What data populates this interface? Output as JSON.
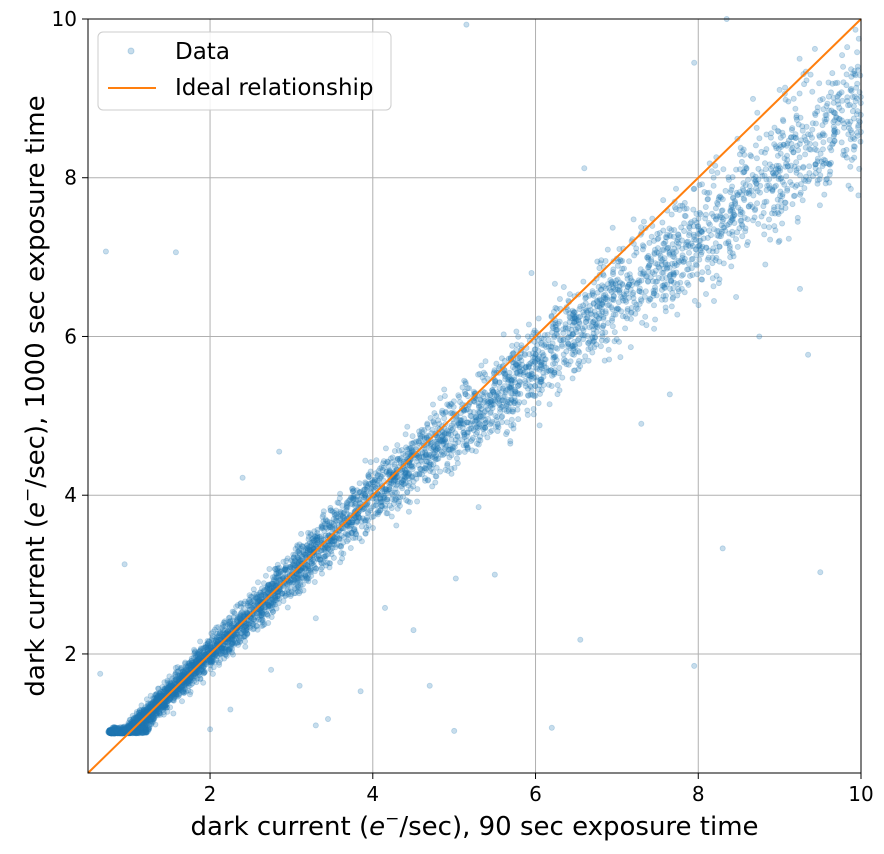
{
  "chart_data": {
    "type": "scatter",
    "title": "",
    "xlabel": "dark current (e⁻/sec), 90 sec exposure time",
    "ylabel": "dark current (e⁻/sec), 1000 sec exposure time",
    "xlabel_parts": {
      "pre": "dark current (",
      "var": "e",
      "sup": "−",
      "post": "/sec), 90 sec exposure time"
    },
    "ylabel_parts": {
      "pre": "dark current (",
      "var": "e",
      "sup": "−",
      "post": "/sec), 1000 sec exposure time"
    },
    "xlim": [
      0.5,
      10
    ],
    "ylim": [
      0.5,
      10
    ],
    "xticks": [
      2,
      4,
      6,
      8,
      10
    ],
    "yticks": [
      2,
      4,
      6,
      8,
      10
    ],
    "xtick_labels": [
      "2",
      "4",
      "6",
      "8",
      "10"
    ],
    "ytick_labels": [
      "2",
      "4",
      "6",
      "8",
      "10"
    ],
    "grid": true,
    "legend": {
      "position": "upper-left",
      "entries": [
        "Data",
        "Ideal relationship"
      ]
    },
    "series": [
      {
        "name": "Data",
        "kind": "scatter",
        "color": "#1f77b4",
        "alpha": 0.25,
        "approx_points": 6000,
        "trend": {
          "slope_low": 1.0,
          "slope_high": 0.82,
          "x_floor": 1.05,
          "y_floor": 1.0
        },
        "outliers": [
          {
            "x": 0.72,
            "y": 7.07
          },
          {
            "x": 1.58,
            "y": 7.06
          },
          {
            "x": 0.95,
            "y": 3.13
          },
          {
            "x": 5.15,
            "y": 9.93
          },
          {
            "x": 8.35,
            "y": 10.0
          },
          {
            "x": 9.5,
            "y": 3.03
          },
          {
            "x": 8.3,
            "y": 3.33
          },
          {
            "x": 7.95,
            "y": 1.85
          },
          {
            "x": 6.55,
            "y": 2.18
          },
          {
            "x": 5.5,
            "y": 3.0
          },
          {
            "x": 5.02,
            "y": 2.95
          },
          {
            "x": 4.7,
            "y": 1.6
          },
          {
            "x": 4.5,
            "y": 2.3
          },
          {
            "x": 5.0,
            "y": 1.03
          },
          {
            "x": 6.2,
            "y": 1.07
          },
          {
            "x": 3.45,
            "y": 1.18
          },
          {
            "x": 3.85,
            "y": 1.53
          },
          {
            "x": 4.15,
            "y": 2.58
          },
          {
            "x": 3.1,
            "y": 1.6
          },
          {
            "x": 2.85,
            "y": 4.55
          },
          {
            "x": 2.4,
            "y": 4.22
          },
          {
            "x": 6.05,
            "y": 4.88
          },
          {
            "x": 7.3,
            "y": 4.9
          },
          {
            "x": 7.65,
            "y": 5.27
          },
          {
            "x": 9.35,
            "y": 5.77
          },
          {
            "x": 6.6,
            "y": 8.12
          },
          {
            "x": 7.95,
            "y": 9.45
          },
          {
            "x": 9.6,
            "y": 9.2
          },
          {
            "x": 8.75,
            "y": 6.0
          },
          {
            "x": 5.95,
            "y": 6.8
          },
          {
            "x": 0.65,
            "y": 1.75
          },
          {
            "x": 1.55,
            "y": 1.25
          },
          {
            "x": 2.0,
            "y": 1.05
          },
          {
            "x": 2.25,
            "y": 1.3
          },
          {
            "x": 2.75,
            "y": 1.8
          },
          {
            "x": 3.3,
            "y": 1.1
          },
          {
            "x": 5.3,
            "y": 3.85
          },
          {
            "x": 3.3,
            "y": 2.45
          },
          {
            "x": 9.25,
            "y": 6.6
          }
        ]
      },
      {
        "name": "Ideal relationship",
        "kind": "line",
        "color": "#ff7f0e",
        "x": [
          0.5,
          10
        ],
        "y": [
          0.5,
          10
        ]
      }
    ]
  }
}
